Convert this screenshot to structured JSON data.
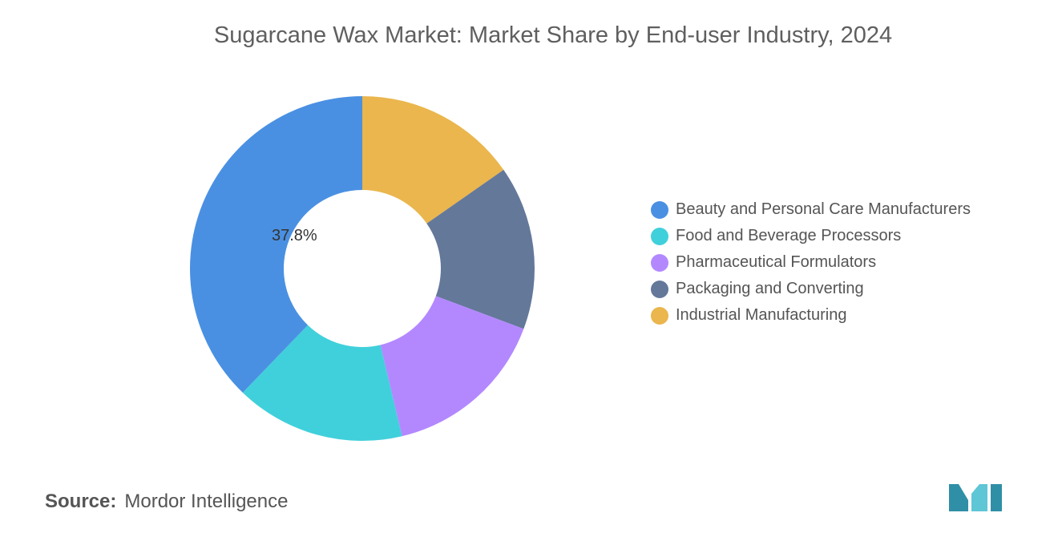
{
  "chart_data": {
    "type": "pie",
    "title": "Sugarcane Wax Market: Market Share by End-user Industry, 2024",
    "categories": [
      "Beauty and Personal Care Manufacturers",
      "Food and Beverage Processors",
      "Pharmaceutical Formulators",
      "Packaging and Converting",
      "Industrial Manufacturing"
    ],
    "values": [
      37.8,
      15.9,
      15.6,
      15.4,
      15.3
    ],
    "data_labels": [
      "37.8%",
      "",
      "",
      "",
      ""
    ],
    "colors": [
      "#4a90e2",
      "#40d0db",
      "#b388ff",
      "#64789a",
      "#eab64d"
    ],
    "donut": true,
    "legend_position": "right"
  },
  "source": {
    "label": "Source:",
    "value": "Mordor Intelligence"
  },
  "logo": {
    "icon": "mordor-intelligence-logo-icon",
    "colors": [
      "#2f8fa6",
      "#5ec6d5"
    ]
  }
}
